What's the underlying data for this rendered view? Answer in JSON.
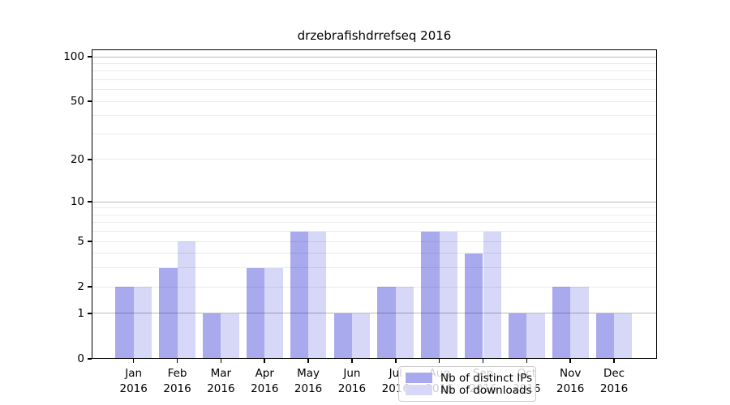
{
  "chart_data": {
    "type": "bar",
    "title": "drzebrafishdrrefseq 2016",
    "categories": [
      "Jan",
      "Feb",
      "Mar",
      "Apr",
      "May",
      "Jun",
      "Jul",
      "Aug",
      "Sep",
      "Oct",
      "Nov",
      "Dec"
    ],
    "category_year": "2016",
    "series": [
      {
        "name": "Nb of distinct IPs",
        "color": "#a9a9ee",
        "values": [
          2,
          3,
          1,
          3,
          6,
          1,
          2,
          6,
          4,
          1,
          2,
          1
        ]
      },
      {
        "name": "Nb of downloads",
        "color": "#d7d7f7",
        "values": [
          2,
          5,
          1,
          3,
          6,
          1,
          2,
          6,
          6,
          1,
          2,
          1
        ]
      }
    ],
    "yscale": "log1p",
    "ylim": [
      0,
      112
    ],
    "ytick_labels": [
      0,
      1,
      2,
      5,
      10,
      20,
      50,
      100
    ],
    "major_gridlines": [
      1,
      10,
      100
    ],
    "minor_gridlines": [
      2,
      3,
      4,
      5,
      6,
      7,
      8,
      9,
      20,
      30,
      40,
      50,
      60,
      70,
      80,
      90
    ],
    "grid": true,
    "legend_position": "lower center",
    "xlabel": "",
    "ylabel": "",
    "frame_color": "#000000",
    "major_grid_color": "#bababa",
    "minor_grid_color": "#e8e8e8",
    "background_color": "#ffffff"
  }
}
